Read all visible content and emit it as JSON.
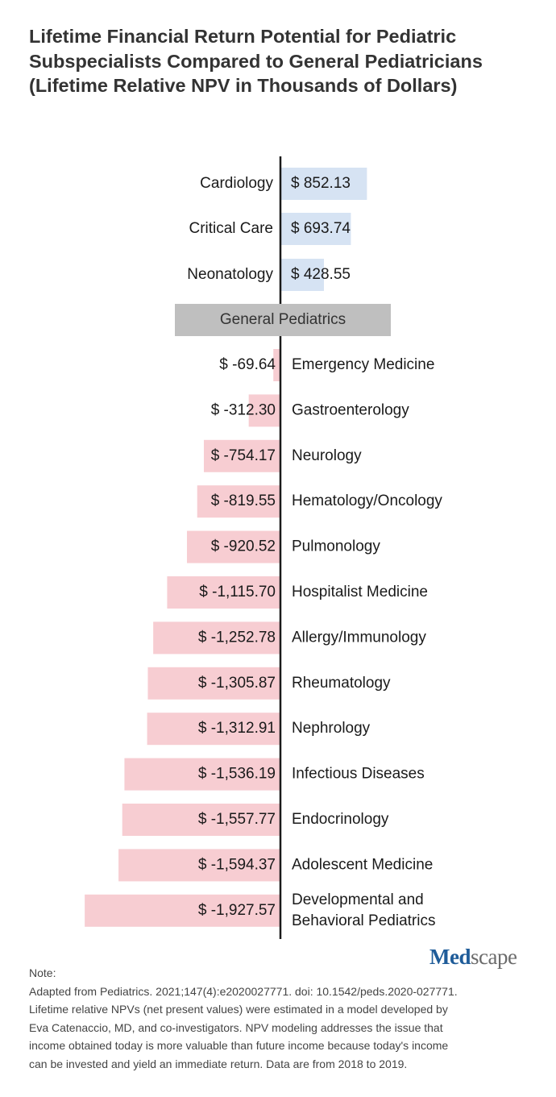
{
  "title": "Lifetime Financial Return Potential for Pediatric Subspecialists Compared to General Pediatricians (Lifetime Relative NPV in Thousands of Dollars)",
  "colors": {
    "positive": "#d6e3f3",
    "negative": "#f7cdd2",
    "baseline": "#bfbfbf",
    "axis": "#1a1a1a"
  },
  "chart_data": {
    "type": "bar",
    "orientation": "horizontal",
    "baseline_label": "General Pediatrics",
    "value_prefix": "$ ",
    "categories": [
      "Cardiology",
      "Critical Care",
      "Neonatology",
      "Emergency Medicine",
      "Gastroenterology",
      "Neurology",
      "Hematology/Oncology",
      "Pulmonology",
      "Hospitalist Medicine",
      "Allergy/Immunology",
      "Rheumatology",
      "Nephrology",
      "Infectious Diseases",
      "Endocrinology",
      "Adolescent Medicine",
      "Developmental and Behavioral Pediatrics"
    ],
    "values": [
      852.13,
      693.74,
      428.55,
      -69.64,
      -312.3,
      -754.17,
      -819.55,
      -920.52,
      -1115.7,
      -1252.78,
      -1305.87,
      -1312.91,
      -1536.19,
      -1557.77,
      -1594.37,
      -1927.57
    ],
    "value_labels": [
      "$ 852.13",
      "$ 693.74",
      "$ 428.55",
      "$ -69.64",
      "$ -312.30",
      "$ -754.17",
      "$ -819.55",
      "$ -920.52",
      "$ -1,115.70",
      "$ -1,252.78",
      "$ -1,305.87",
      "$ -1,312.91",
      "$ -1,536.19",
      "$ -1,557.77",
      "$ -1,594.37",
      "$ -1,927.57"
    ]
  },
  "note": {
    "heading": "Note:",
    "lines": [
      "Adapted from Pediatrics. 2021;147(4):e2020027771. doi: 10.1542/peds.2020-027771.",
      "Lifetime relative NPVs (net present values) were estimated in a model developed by",
      "Eva Catenaccio, MD, and co-investigators. NPV modeling addresses the issue that",
      "income obtained today is more valuable than future income because today's income",
      "can be invested and yield an immediate return. Data are from 2018 to 2019."
    ]
  },
  "logo": {
    "part1": "Med",
    "part2": "scape"
  }
}
